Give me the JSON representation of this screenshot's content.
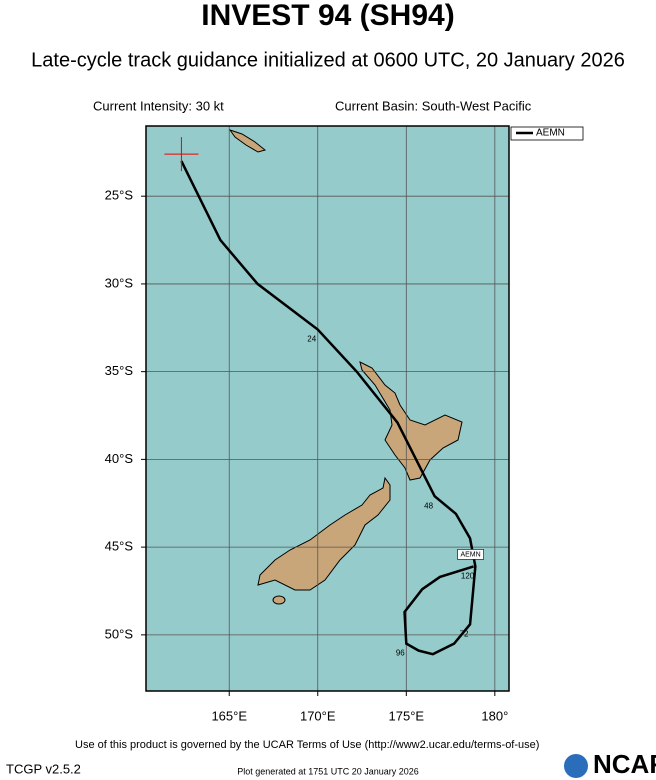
{
  "chart_data": {
    "type": "track",
    "title": "INVEST 94 (SH94)",
    "subtitle": "Late-cycle track guidance initialized at 0600 UTC, 20 January 2026",
    "annotations": [
      "Current Intensity: 30 kt",
      "Current Basin: South-West Pacific"
    ],
    "xlim": [
      160.3,
      180.8
    ],
    "ylim": [
      -53.2,
      -21.0
    ],
    "xticks": [
      {
        "value": 165,
        "label": "165°E"
      },
      {
        "value": 170,
        "label": "170°E"
      },
      {
        "value": 175,
        "label": "175°E"
      },
      {
        "value": 180,
        "label": "180°"
      }
    ],
    "yticks": [
      {
        "value": -25,
        "label": "25°S"
      },
      {
        "value": -30,
        "label": "30°S"
      },
      {
        "value": -35,
        "label": "35°S"
      },
      {
        "value": -40,
        "label": "40°S"
      },
      {
        "value": -45,
        "label": "45°S"
      },
      {
        "value": -50,
        "label": "50°S"
      }
    ],
    "grid": true,
    "legend": "upper right",
    "series": [
      {
        "name": "AEMN",
        "color": "#000000",
        "x": [
          162.3,
          164.5,
          166.6,
          170.0,
          172.2,
          174.5,
          176.6,
          177.8,
          178.6,
          178.9,
          178.6,
          177.7,
          176.5,
          175.7,
          175.0,
          174.9,
          175.9,
          176.9,
          178.8
        ],
        "y": [
          -23.0,
          -27.5,
          -30.0,
          -32.6,
          -35.0,
          -37.9,
          -42.1,
          -43.1,
          -44.5,
          -46.1,
          -49.4,
          -50.5,
          -51.1,
          -50.9,
          -50.5,
          -48.7,
          -47.4,
          -46.7,
          -46.1
        ],
        "point_labels": [
          null,
          null,
          null,
          "24",
          null,
          null,
          "48",
          null,
          null,
          null,
          "72",
          null,
          null,
          null,
          "96",
          null,
          null,
          null,
          "120"
        ]
      }
    ]
  },
  "footer": {
    "terms": "Use of this product is governed by the UCAR Terms of Use (http://www2.ucar.edu/terms-of-use)",
    "version": "TCGP v2.5.2",
    "generated": "Plot generated at 1751 UTC  20 January 2026",
    "logo": "NCAR"
  }
}
